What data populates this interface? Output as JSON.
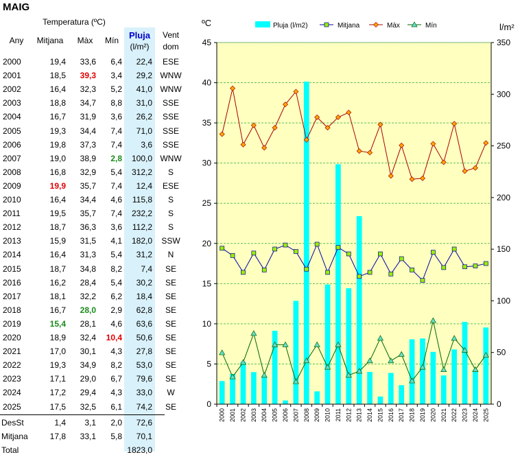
{
  "title": "MAIG",
  "table": {
    "header_group": "Temperatura (ºC)",
    "headers": {
      "any": "Any",
      "mitjana": "Mitjana",
      "max": "Màx",
      "min": "Mín",
      "pluja_1": "Pluja",
      "pluja_2": "(l/m²)",
      "vent_1": "Vent",
      "vent_2": "dom"
    },
    "rows": [
      {
        "any": "2000",
        "mitjana": "19,4",
        "max": "33,6",
        "min": "6,4",
        "pluja": "22,4",
        "vent": "ESE"
      },
      {
        "any": "2001",
        "mitjana": "18,5",
        "max": "39,3",
        "min": "3,4",
        "pluja": "29,2",
        "vent": "WNW",
        "max_hl": "red"
      },
      {
        "any": "2002",
        "mitjana": "16,4",
        "max": "32,3",
        "min": "5,2",
        "pluja": "41,0",
        "vent": "WNW"
      },
      {
        "any": "2003",
        "mitjana": "18,8",
        "max": "34,7",
        "min": "8,8",
        "pluja": "31,0",
        "vent": "SSE"
      },
      {
        "any": "2004",
        "mitjana": "16,7",
        "max": "31,9",
        "min": "3,6",
        "pluja": "26,2",
        "vent": "SSE"
      },
      {
        "any": "2005",
        "mitjana": "19,3",
        "max": "34,4",
        "min": "7,4",
        "pluja": "71,0",
        "vent": "SSE"
      },
      {
        "any": "2006",
        "mitjana": "19,8",
        "max": "37,3",
        "min": "7,4",
        "pluja": "3,6",
        "vent": "SSE"
      },
      {
        "any": "2007",
        "mitjana": "19,0",
        "max": "38,9",
        "min": "2,8",
        "pluja": "100,0",
        "vent": "WNW",
        "min_hl": "green"
      },
      {
        "any": "2008",
        "mitjana": "16,8",
        "max": "32,9",
        "min": "5,4",
        "pluja": "312,2",
        "vent": "S"
      },
      {
        "any": "2009",
        "mitjana": "19,9",
        "max": "35,7",
        "min": "7,4",
        "pluja": "12,4",
        "vent": "ESE",
        "mitjana_hl": "red"
      },
      {
        "any": "2010",
        "mitjana": "16,4",
        "max": "34,4",
        "min": "4,6",
        "pluja": "115,8",
        "vent": "S"
      },
      {
        "any": "2011",
        "mitjana": "19,5",
        "max": "35,7",
        "min": "7,4",
        "pluja": "232,2",
        "vent": "S"
      },
      {
        "any": "2012",
        "mitjana": "18,7",
        "max": "36,3",
        "min": "3,6",
        "pluja": "112,2",
        "vent": "S"
      },
      {
        "any": "2013",
        "mitjana": "15,9",
        "max": "31,5",
        "min": "4,1",
        "pluja": "182,0",
        "vent": "SSW"
      },
      {
        "any": "2014",
        "mitjana": "16,4",
        "max": "31,3",
        "min": "5,4",
        "pluja": "31,2",
        "vent": "N"
      },
      {
        "any": "2015",
        "mitjana": "18,7",
        "max": "34,8",
        "min": "8,2",
        "pluja": "7,4",
        "vent": "SE"
      },
      {
        "any": "2016",
        "mitjana": "16,2",
        "max": "28,4",
        "min": "5,4",
        "pluja": "30,2",
        "vent": "SE"
      },
      {
        "any": "2017",
        "mitjana": "18,1",
        "max": "32,2",
        "min": "6,2",
        "pluja": "18,4",
        "vent": "SE"
      },
      {
        "any": "2018",
        "mitjana": "16,7",
        "max": "28,0",
        "min": "2,9",
        "pluja": "62,8",
        "vent": "SE",
        "max_hl": "green"
      },
      {
        "any": "2019",
        "mitjana": "15,4",
        "max": "28,1",
        "min": "4,6",
        "pluja": "63,6",
        "vent": "SE",
        "mitjana_hl": "green"
      },
      {
        "any": "2020",
        "mitjana": "18,9",
        "max": "32,4",
        "min": "10,4",
        "pluja": "50,6",
        "vent": "SE",
        "min_hl": "red"
      },
      {
        "any": "2021",
        "mitjana": "17,0",
        "max": "30,1",
        "min": "4,3",
        "pluja": "27,8",
        "vent": "SE"
      },
      {
        "any": "2022",
        "mitjana": "19,3",
        "max": "34,9",
        "min": "8,2",
        "pluja": "53,0",
        "vent": "SE"
      },
      {
        "any": "2023",
        "mitjana": "17,1",
        "max": "29,0",
        "min": "6,7",
        "pluja": "79,6",
        "vent": "SE"
      },
      {
        "any": "2024",
        "mitjana": "17,2",
        "max": "29,4",
        "min": "4,3",
        "pluja": "33,0",
        "vent": "W"
      },
      {
        "any": "2025",
        "mitjana": "17,5",
        "max": "32,5",
        "min": "6,1",
        "pluja": "74,2",
        "vent": "SE"
      }
    ],
    "summary": [
      {
        "label": "DesSt",
        "mitjana": "1,4",
        "max": "3,1",
        "min": "2,0",
        "pluja": "72,6"
      },
      {
        "label": "Mitjana",
        "mitjana": "17,8",
        "max": "33,1",
        "min": "5,8",
        "pluja": "70,1"
      },
      {
        "label": "Total",
        "mitjana": "",
        "max": "",
        "min": "",
        "pluja": "1823,0"
      }
    ]
  },
  "colors": {
    "plot_bg": "#ffffc0",
    "gridline": "#5cc05c",
    "bar": "#00ffff",
    "mitjana_line": "#0000aa",
    "mitjana_marker": "#99ee00",
    "max_line": "#aa0000",
    "max_marker": "#ffaa00",
    "min_line": "#006600",
    "min_marker": "#66ddcc",
    "red_text": "#e00000",
    "green_text": "#1a8a1a"
  },
  "chart_data": {
    "type": "bar+line",
    "y_left_label": "ºC",
    "y_right_label": "l/m²",
    "y_left_ticks": [
      0,
      5,
      10,
      15,
      20,
      25,
      30,
      35,
      40,
      45
    ],
    "y_right_ticks": [
      0,
      50,
      100,
      150,
      200,
      250,
      300,
      350
    ],
    "ylim_left": [
      0,
      45
    ],
    "ylim_right": [
      0,
      350
    ],
    "grid": "horizontal dashed",
    "legend": "top",
    "categories": [
      "2000",
      "2001",
      "2002",
      "2003",
      "2004",
      "2005",
      "2006",
      "2007",
      "2008",
      "2009",
      "2010",
      "2011",
      "2012",
      "2013",
      "2014",
      "2015",
      "2016",
      "2017",
      "2018",
      "2019",
      "2020",
      "2021",
      "2022",
      "2023",
      "2024",
      "2025"
    ],
    "series": [
      {
        "name": "Pluja (l/m2)",
        "type": "bar",
        "axis": "right",
        "values": [
          22.4,
          29.2,
          41.0,
          31.0,
          26.2,
          71.0,
          3.6,
          100.0,
          312.2,
          12.4,
          115.8,
          232.2,
          112.2,
          182.0,
          31.2,
          7.4,
          30.2,
          18.4,
          62.8,
          63.6,
          50.6,
          27.8,
          53.0,
          79.6,
          33.0,
          74.2
        ]
      },
      {
        "name": "Mitjana",
        "type": "line",
        "axis": "left",
        "values": [
          19.4,
          18.5,
          16.4,
          18.8,
          16.7,
          19.3,
          19.8,
          19.0,
          16.8,
          19.9,
          16.4,
          19.5,
          18.7,
          15.9,
          16.4,
          18.7,
          16.2,
          18.1,
          16.7,
          15.4,
          18.9,
          17.0,
          19.3,
          17.1,
          17.2,
          17.5
        ]
      },
      {
        "name": "Màx",
        "type": "line",
        "axis": "left",
        "values": [
          33.6,
          39.3,
          32.3,
          34.7,
          31.9,
          34.4,
          37.3,
          38.9,
          32.9,
          35.7,
          34.4,
          35.7,
          36.3,
          31.5,
          31.3,
          34.8,
          28.4,
          32.2,
          28.0,
          28.1,
          32.4,
          30.1,
          34.9,
          29.0,
          29.4,
          32.5
        ]
      },
      {
        "name": "Mín",
        "type": "line",
        "axis": "left",
        "values": [
          6.4,
          3.4,
          5.2,
          8.8,
          3.6,
          7.4,
          7.4,
          2.8,
          5.4,
          7.4,
          4.6,
          7.4,
          3.6,
          4.1,
          5.4,
          8.2,
          5.4,
          6.2,
          2.9,
          4.6,
          10.4,
          4.3,
          8.2,
          6.7,
          4.3,
          6.1
        ]
      }
    ]
  }
}
